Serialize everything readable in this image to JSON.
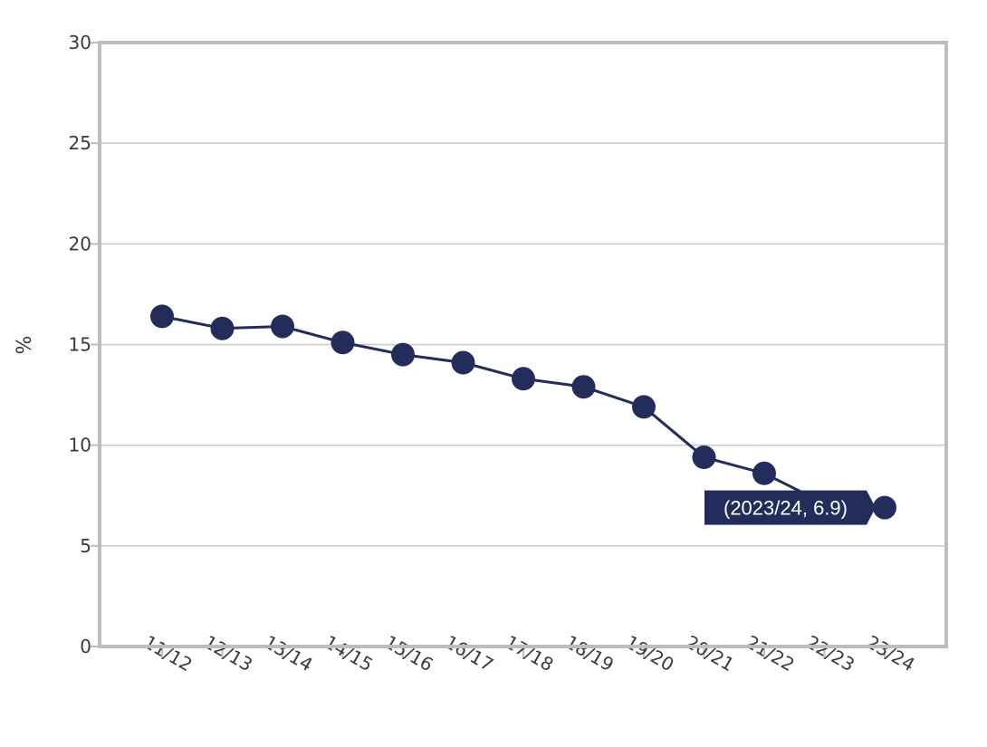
{
  "chart_data": {
    "type": "line",
    "title": "",
    "xlabel": "",
    "ylabel": "%",
    "ylim": [
      0,
      30
    ],
    "yticks": [
      0,
      5,
      10,
      15,
      20,
      25,
      30
    ],
    "grid": true,
    "categories": [
      "11/12",
      "12/13",
      "13/14",
      "14/15",
      "15/16",
      "16/17",
      "17/18",
      "18/19",
      "19/20",
      "20/21",
      "21/22",
      "22/23",
      "23/24"
    ],
    "series": [
      {
        "values": [
          16.4,
          15.8,
          15.9,
          15.1,
          14.5,
          14.1,
          13.3,
          12.9,
          11.9,
          9.4,
          8.6,
          7.1,
          6.9
        ]
      }
    ],
    "tooltip": {
      "text": "(2023/24, 6.9)",
      "point_index": 12
    }
  },
  "colors": {
    "series": "#242c5c",
    "grid": "#c8c8c8",
    "frame": "#bdbdbd",
    "tooltip_bg": "#242c5c"
  }
}
